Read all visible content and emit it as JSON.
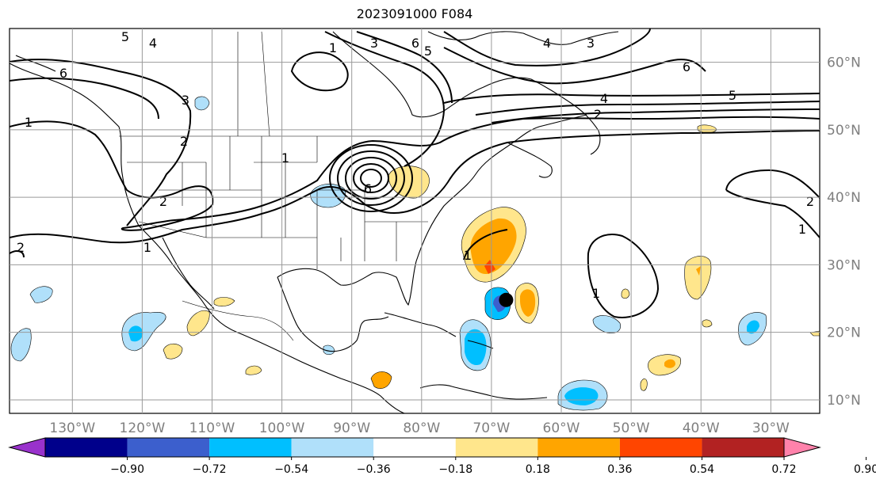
{
  "title": "2023091000 F084",
  "map": {
    "projection": "plate-carree",
    "lon_range": [
      -139,
      -23
    ],
    "lat_range": [
      8,
      65
    ],
    "grid": true,
    "lat_ticks": [
      {
        "value": 10,
        "label": "10°N"
      },
      {
        "value": 20,
        "label": "20°N"
      },
      {
        "value": 30,
        "label": "30°N"
      },
      {
        "value": 40,
        "label": "40°N"
      },
      {
        "value": 50,
        "label": "50°N"
      },
      {
        "value": 60,
        "label": "60°N"
      }
    ],
    "lon_ticks": [
      {
        "value": -130,
        "label": "130°W"
      },
      {
        "value": -120,
        "label": "120°W"
      },
      {
        "value": -110,
        "label": "110°W"
      },
      {
        "value": -100,
        "label": "100°W"
      },
      {
        "value": -90,
        "label": "90°W"
      },
      {
        "value": -80,
        "label": "80°W"
      },
      {
        "value": -70,
        "label": "70°W"
      },
      {
        "value": -60,
        "label": "60°W"
      },
      {
        "value": -50,
        "label": "50°W"
      },
      {
        "value": -40,
        "label": "40°W"
      },
      {
        "value": -30,
        "label": "30°W"
      }
    ],
    "storm_marker": {
      "lon": -67.9,
      "lat": 24.8,
      "color": "#000000"
    },
    "contour_labels": [
      "1",
      "2",
      "3",
      "4",
      "5",
      "6"
    ]
  },
  "colorbar": {
    "extend": "both",
    "bounds": [
      "−0.90",
      "−0.72",
      "−0.54",
      "−0.36",
      "−0.18",
      "0.18",
      "0.36",
      "0.54",
      "0.72",
      "0.90"
    ],
    "colors": [
      "#9932cc",
      "#00008b",
      "#3c5fcd",
      "#00bfff",
      "#b0e0fa",
      "#ffffff",
      "#ffe68c",
      "#ffa500",
      "#ff4500",
      "#b22222",
      "#ff82ab"
    ]
  }
}
